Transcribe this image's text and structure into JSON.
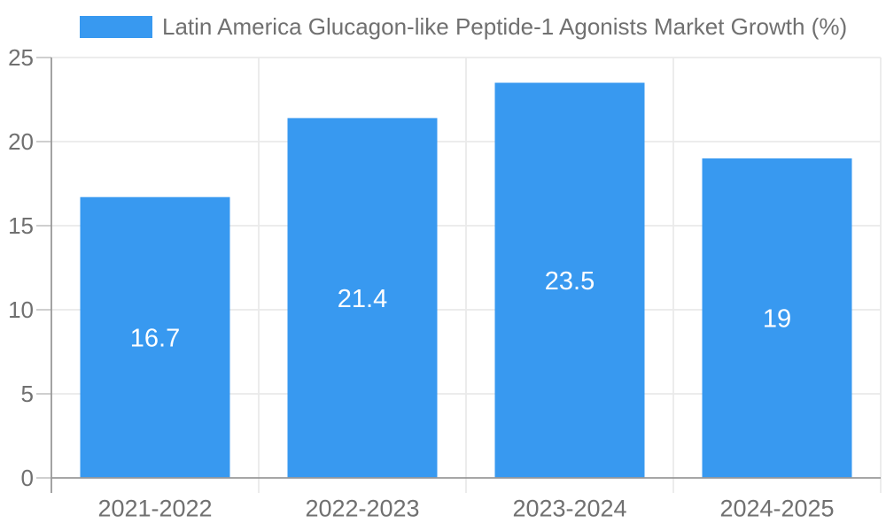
{
  "chart_data": {
    "type": "bar",
    "title": "Latin America Glucagon-like Peptide-1 Agonists Market Growth (%)",
    "legend": {
      "position": "top-left",
      "label": "Latin America Glucagon-like Peptide-1 Agonists Market Growth (%)"
    },
    "categories": [
      "2021-2022",
      "2022-2023",
      "2023-2024",
      "2024-2025"
    ],
    "values": [
      16.7,
      21.4,
      23.5,
      19
    ],
    "value_labels": [
      "16.7",
      "21.4",
      "23.5",
      "19"
    ],
    "xlabel": "",
    "ylabel": "",
    "ylim": [
      0,
      25
    ],
    "yticks": [
      0,
      5,
      10,
      15,
      20,
      25
    ],
    "grid": true,
    "colors": {
      "bar": "#3899F0",
      "axis_line": "#999999",
      "grid_line": "#EAEAEA",
      "tick_line": "#C8C8C8",
      "axis_text": "#707070",
      "value_text": "#FFFFFF",
      "background": "#FFFFFF"
    }
  }
}
